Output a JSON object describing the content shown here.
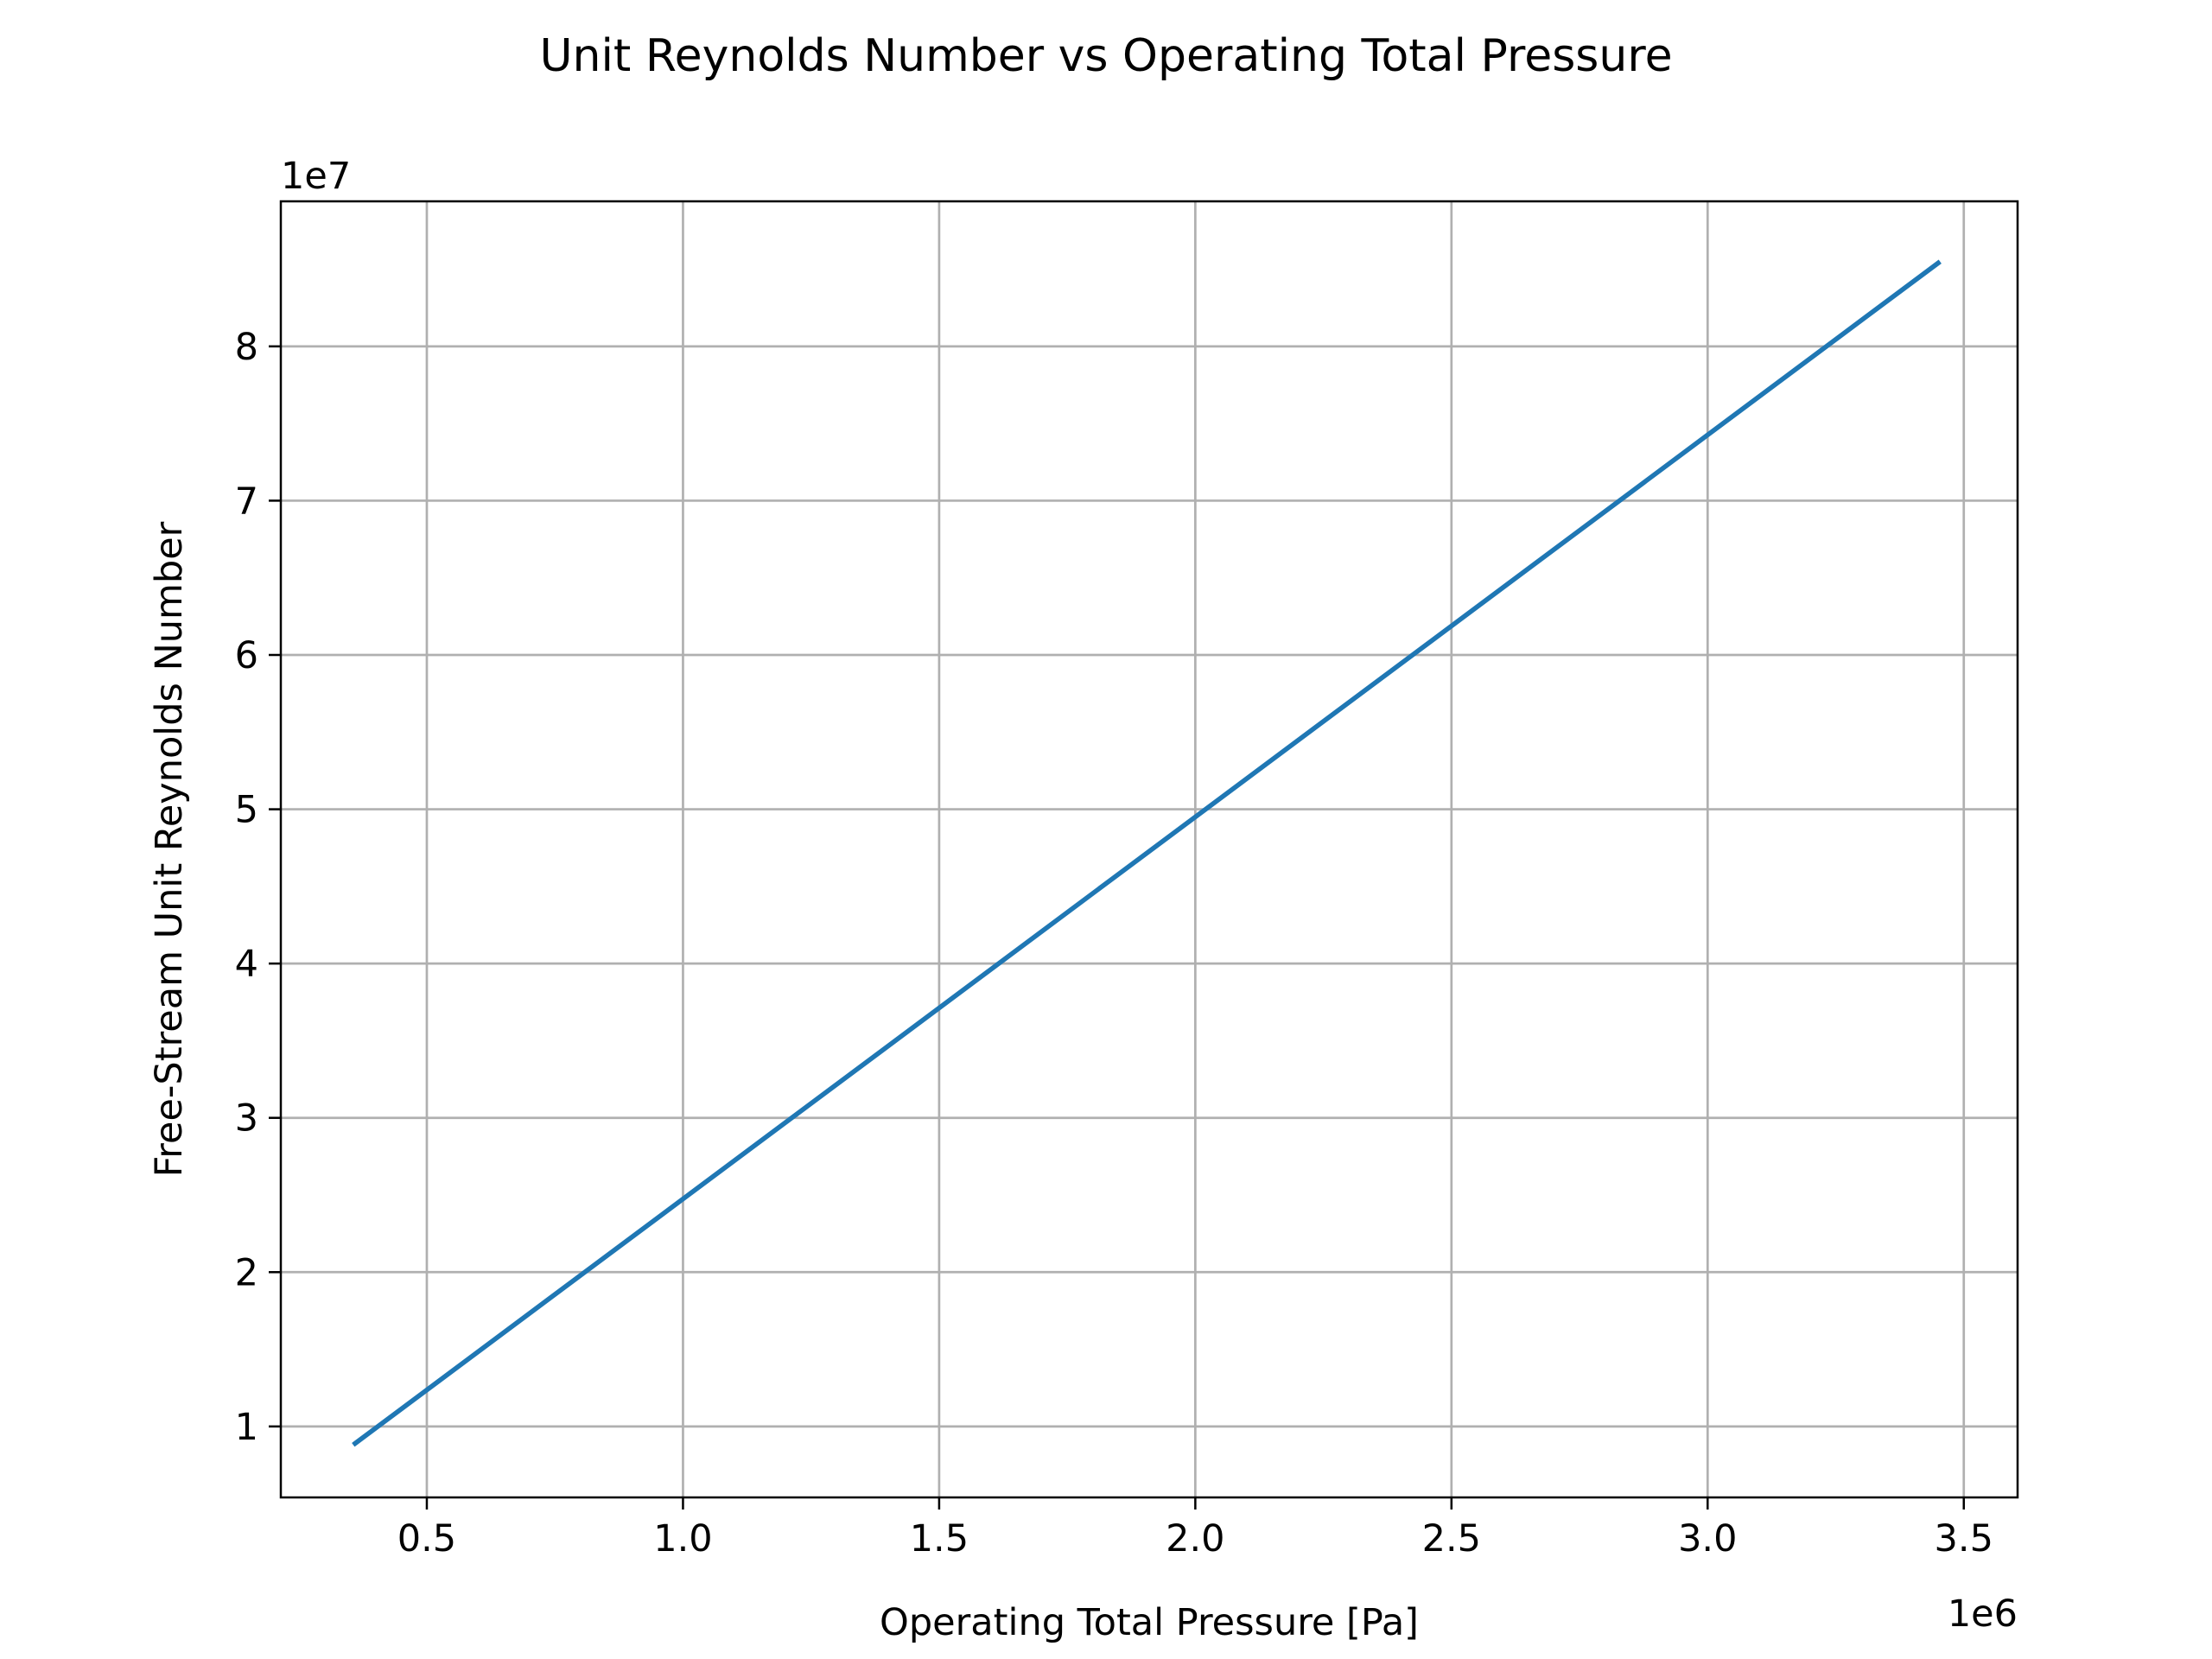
{
  "chart_data": {
    "type": "line",
    "title": "Unit Reynolds Number vs Operating Total Pressure",
    "xlabel": "Operating Total Pressure [Pa]",
    "ylabel": "Free-Stream Unit Reynolds Number",
    "x_scale_label": "1e6",
    "y_scale_label": "1e7",
    "x_scale": 1000000,
    "y_scale": 10000000,
    "xlim": [
      215000,
      3605000
    ],
    "ylim": [
      5400000,
      89400000
    ],
    "xticks": [
      500000,
      1000000,
      1500000,
      2000000,
      2500000,
      3000000,
      3500000
    ],
    "xtick_labels": [
      "0.5",
      "1.0",
      "1.5",
      "2.0",
      "2.5",
      "3.0",
      "3.5"
    ],
    "yticks": [
      10000000,
      20000000,
      30000000,
      40000000,
      50000000,
      60000000,
      70000000,
      80000000
    ],
    "ytick_labels": [
      "1",
      "2",
      "3",
      "4",
      "5",
      "6",
      "7",
      "8"
    ],
    "grid": true,
    "colors": {
      "line": "#1f77b4",
      "grid": "#b0b0b0",
      "axes": "#000000"
    },
    "series": [
      {
        "x": [
          360000,
          3450000
        ],
        "y": [
          8900000,
          85400000
        ]
      }
    ]
  }
}
